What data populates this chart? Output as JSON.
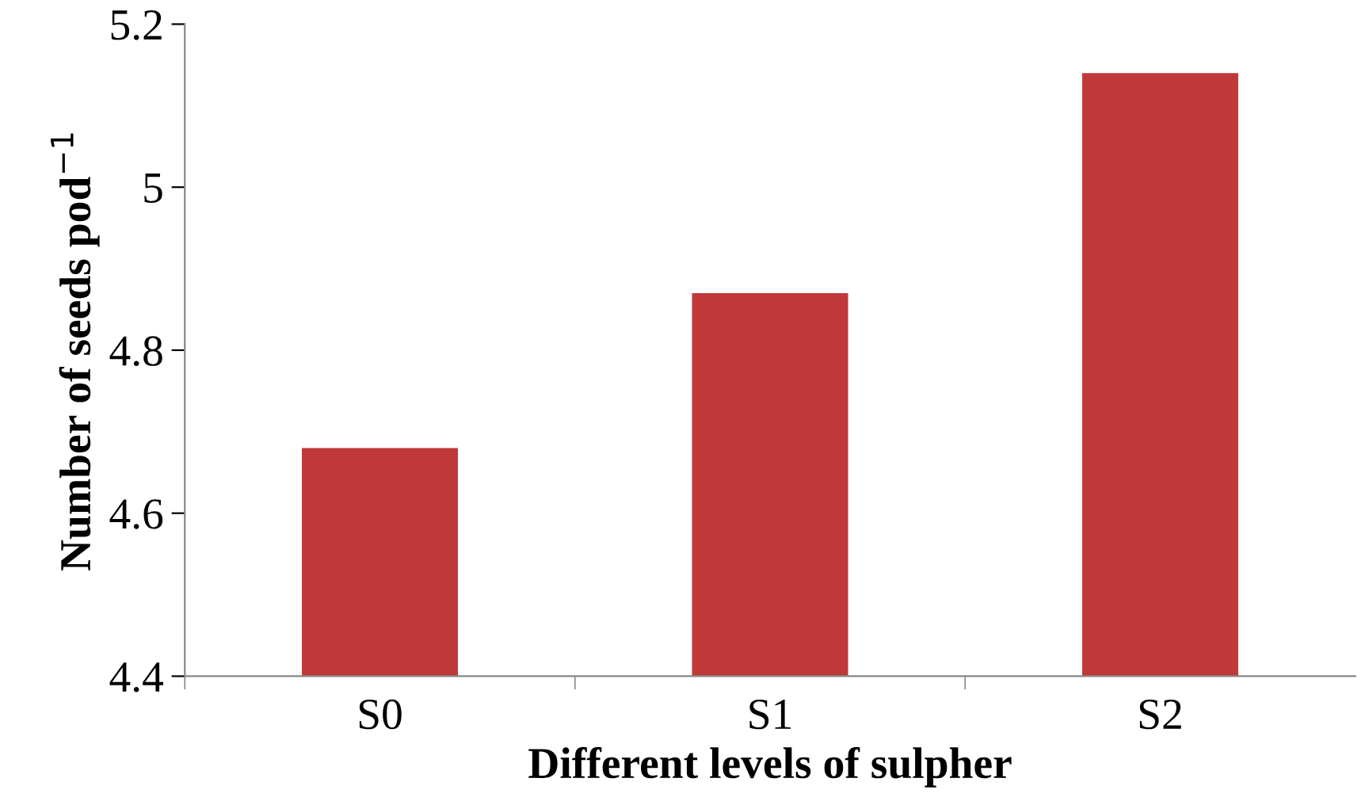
{
  "chart_data": {
    "type": "bar",
    "xlabel": "Different levels of sulpher",
    "ylabel": "Number of seeds pod$^{−1}$",
    "categories": [
      "S0",
      "S1",
      "S2"
    ],
    "values": [
      4.68,
      4.87,
      5.14
    ],
    "color": "#c0393a",
    "ylim": [
      4.4,
      5.2
    ],
    "yticks": [
      4.4,
      4.6,
      4.8,
      5,
      5.2
    ],
    "grid": false,
    "legend": false
  }
}
